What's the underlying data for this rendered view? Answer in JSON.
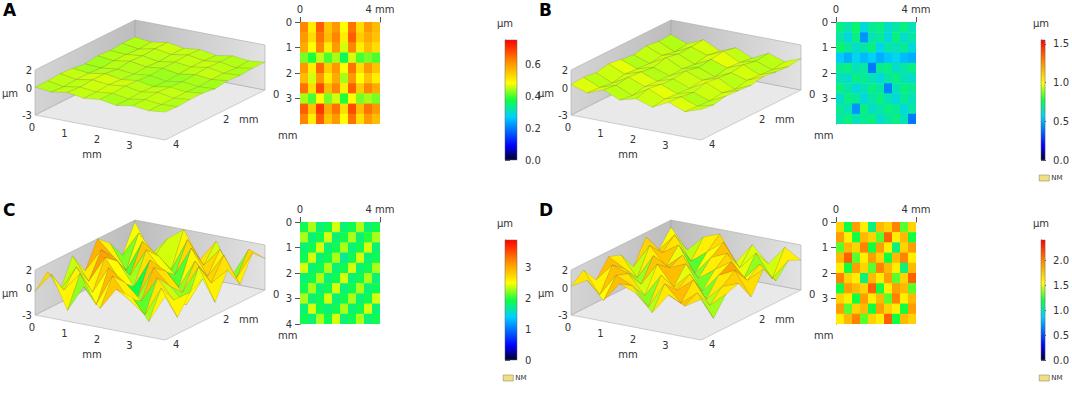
{
  "chart_data": [
    {
      "type": "surface_map",
      "label": "A",
      "surface": {
        "x_label": "mm",
        "y_label": "mm",
        "z_label": "µm",
        "xlim": [
          0,
          4
        ],
        "ylim": [
          0,
          4
        ],
        "zlim": [
          -3,
          2
        ],
        "xticks": [
          0,
          1,
          2,
          3
        ],
        "yticks": [
          0,
          2,
          4
        ],
        "zticks": [
          -3,
          0,
          2
        ],
        "z": [
          [
            0.1,
            -0.1,
            0.2,
            -0.1,
            0.1,
            -0.2,
            0.1,
            -0.1,
            0.1
          ],
          [
            0.1,
            -0.2,
            0.2,
            -0.1,
            0.2,
            -0.1,
            0.1,
            -0.2,
            0.1
          ],
          [
            0.0,
            -0.1,
            0.1,
            -0.2,
            0.1,
            -0.1,
            0.2,
            -0.1,
            0.0
          ],
          [
            0.1,
            -0.1,
            0.2,
            -0.1,
            0.1,
            -0.2,
            0.1,
            -0.1,
            0.1
          ],
          [
            -0.1,
            -0.2,
            0.0,
            -0.2,
            0.0,
            -0.3,
            0.0,
            -0.2,
            -0.1
          ],
          [
            0.1,
            -0.1,
            0.2,
            -0.1,
            0.1,
            -0.2,
            0.1,
            -0.1,
            0.1
          ],
          [
            0.2,
            -0.1,
            0.2,
            0.0,
            0.2,
            -0.1,
            0.2,
            -0.1,
            0.1
          ],
          [
            0.1,
            -0.2,
            0.1,
            -0.1,
            0.1,
            -0.2,
            0.1,
            -0.1,
            0.0
          ],
          [
            0.1,
            -0.1,
            0.2,
            -0.1,
            0.1,
            -0.2,
            0.1,
            -0.1,
            0.1
          ]
        ]
      },
      "heatmap": {
        "y_label": "mm",
        "xlim": [
          0,
          4
        ],
        "ylim": [
          0,
          4
        ],
        "xticks": [
          0,
          {
            "value": 4,
            "label": "4 mm"
          }
        ],
        "yticks": [
          0,
          1,
          2,
          3
        ],
        "cells": [
          [
            0.62,
            0.5,
            0.66,
            0.55,
            0.6,
            0.48,
            0.64,
            0.52,
            0.6,
            0.56
          ],
          [
            0.6,
            0.52,
            0.64,
            0.56,
            0.62,
            0.5,
            0.66,
            0.54,
            0.58,
            0.55
          ],
          [
            0.58,
            0.48,
            0.62,
            0.5,
            0.6,
            0.46,
            0.62,
            0.5,
            0.56,
            0.52
          ],
          [
            0.42,
            0.38,
            0.45,
            0.4,
            0.44,
            0.36,
            0.46,
            0.4,
            0.42,
            0.4
          ],
          [
            0.6,
            0.5,
            0.65,
            0.54,
            0.6,
            0.48,
            0.64,
            0.52,
            0.6,
            0.55
          ],
          [
            0.56,
            0.46,
            0.6,
            0.5,
            0.58,
            0.44,
            0.6,
            0.48,
            0.55,
            0.5
          ],
          [
            0.64,
            0.52,
            0.68,
            0.56,
            0.62,
            0.5,
            0.66,
            0.54,
            0.62,
            0.58
          ],
          [
            0.44,
            0.4,
            0.48,
            0.42,
            0.46,
            0.38,
            0.48,
            0.42,
            0.44,
            0.42
          ],
          [
            0.66,
            0.55,
            0.7,
            0.58,
            0.64,
            0.52,
            0.68,
            0.56,
            0.64,
            0.6
          ],
          [
            0.62,
            0.5,
            0.66,
            0.55,
            0.6,
            0.48,
            0.64,
            0.52,
            0.6,
            0.56
          ]
        ]
      },
      "colorbar": {
        "label": "µm",
        "range": [
          0,
          0.75
        ],
        "ticks": [
          {
            "value": 0,
            "label": "0.0"
          },
          {
            "value": 0.2,
            "label": "0.2"
          },
          {
            "value": 0.4,
            "label": "0.4"
          },
          {
            "value": 0.6,
            "label": "0.6"
          }
        ]
      }
    },
    {
      "type": "surface_map",
      "label": "B",
      "surface": {
        "x_label": "mm",
        "y_label": "mm",
        "z_label": "µm",
        "xlim": [
          0,
          4
        ],
        "ylim": [
          0,
          4
        ],
        "zlim": [
          -3,
          2
        ],
        "xticks": [
          0,
          1,
          2,
          3
        ],
        "yticks": [
          0,
          2,
          4
        ],
        "zticks": [
          -3,
          0,
          2
        ],
        "z": [
          [
            0.4,
            -0.3,
            0.5,
            -0.4,
            0.3,
            -0.5,
            0.4,
            -0.2,
            0.5
          ],
          [
            0.3,
            -0.5,
            0.4,
            -0.2,
            0.6,
            -0.3,
            0.2,
            -0.4,
            0.3
          ],
          [
            0.5,
            -0.2,
            0.3,
            -0.5,
            0.4,
            -0.2,
            0.5,
            -0.3,
            0.4
          ],
          [
            0.2,
            -0.4,
            0.6,
            -0.3,
            0.2,
            -0.5,
            0.3,
            -0.2,
            0.6
          ],
          [
            0.4,
            -0.3,
            0.2,
            -0.4,
            0.5,
            -0.2,
            0.4,
            -0.5,
            0.3
          ],
          [
            0.6,
            -0.2,
            0.4,
            -0.3,
            0.3,
            -0.4,
            0.6,
            -0.2,
            0.4
          ],
          [
            0.3,
            -0.5,
            0.5,
            -0.2,
            0.4,
            -0.3,
            0.2,
            -0.4,
            0.5
          ],
          [
            0.5,
            -0.3,
            0.3,
            -0.5,
            0.6,
            -0.2,
            0.4,
            -0.3,
            0.2
          ],
          [
            0.4,
            -0.2,
            0.5,
            -0.3,
            0.2,
            -0.4,
            0.5,
            -0.2,
            0.4
          ]
        ]
      },
      "heatmap": {
        "y_label": "mm",
        "xlim": [
          0,
          4
        ],
        "ylim": [
          0,
          4
        ],
        "xticks": [
          0,
          {
            "value": 4,
            "label": "4 mm"
          }
        ],
        "yticks": [
          0,
          1,
          2,
          3
        ],
        "cells": [
          [
            0.7,
            0.65,
            0.72,
            0.6,
            0.68,
            0.7,
            0.62,
            0.66,
            0.7,
            0.64
          ],
          [
            0.66,
            0.6,
            0.7,
            0.45,
            0.64,
            0.68,
            0.6,
            0.7,
            0.62,
            0.66
          ],
          [
            0.72,
            0.68,
            0.62,
            0.66,
            0.7,
            0.58,
            0.66,
            0.64,
            0.68,
            0.6
          ],
          [
            0.55,
            0.5,
            0.58,
            0.52,
            0.56,
            0.5,
            0.54,
            0.58,
            0.52,
            0.5
          ],
          [
            0.68,
            0.7,
            0.64,
            0.66,
            0.4,
            0.68,
            0.7,
            0.62,
            0.66,
            0.7
          ],
          [
            0.64,
            0.62,
            0.7,
            0.68,
            0.64,
            0.6,
            0.66,
            0.7,
            0.64,
            0.62
          ],
          [
            0.7,
            0.66,
            0.6,
            0.64,
            0.7,
            0.66,
            0.42,
            0.64,
            0.7,
            0.68
          ],
          [
            0.62,
            0.7,
            0.68,
            0.6,
            0.66,
            0.7,
            0.64,
            0.6,
            0.68,
            0.64
          ],
          [
            0.68,
            0.64,
            0.45,
            0.7,
            0.62,
            0.66,
            0.7,
            0.68,
            0.6,
            0.66
          ],
          [
            0.66,
            0.7,
            0.64,
            0.68,
            0.7,
            0.62,
            0.66,
            0.7,
            0.64,
            0.4
          ]
        ]
      },
      "colorbar": {
        "label": "µm",
        "range": [
          0,
          1.55
        ],
        "missing_label": "NM",
        "ticks": [
          {
            "value": 0,
            "label": "0.0"
          },
          {
            "value": 0.5,
            "label": "0.5"
          },
          {
            "value": 1,
            "label": "1.0"
          },
          {
            "value": 1.5,
            "label": "1.5"
          }
        ]
      }
    },
    {
      "type": "surface_map",
      "label": "C",
      "surface": {
        "x_label": "mm",
        "y_label": "mm",
        "z_label": "µm",
        "xlim": [
          0,
          4
        ],
        "ylim": [
          0,
          4
        ],
        "zlim": [
          -3,
          2
        ],
        "xticks": [
          0,
          1,
          2,
          3
        ],
        "yticks": [
          0,
          2,
          4
        ],
        "zticks": [
          -3,
          0,
          2
        ],
        "z": [
          [
            1.8,
            -1.5,
            0.6,
            2.0,
            -1.0,
            1.4,
            -2.0,
            1.2,
            0.5
          ],
          [
            -1.2,
            1.6,
            -0.5,
            -1.8,
            1.9,
            -0.6,
            1.5,
            -1.4,
            1.8
          ],
          [
            0.8,
            -1.9,
            1.7,
            0.4,
            -1.3,
            2.0,
            -0.8,
            1.9,
            -1.0
          ],
          [
            2.0,
            0.3,
            -1.4,
            1.8,
            -0.2,
            -1.7,
            1.6,
            -0.5,
            1.3
          ],
          [
            -0.9,
            1.8,
            0.9,
            -1.6,
            1.7,
            0.8,
            -1.2,
            2.0,
            -1.6
          ],
          [
            1.5,
            -1.0,
            2.0,
            -0.4,
            -1.8,
            1.9,
            0.2,
            -1.5,
            1.7
          ],
          [
            -1.7,
            1.3,
            -1.2,
            1.9,
            0.6,
            -1.1,
            1.8,
            -0.3,
            0.9
          ],
          [
            1.1,
            -0.6,
            1.6,
            -1.5,
            2.0,
            -0.2,
            -1.6,
            1.7,
            -1.2
          ],
          [
            -0.4,
            1.9,
            -1.8,
            1.2,
            -0.9,
            1.6,
            1.0,
            -1.3,
            1.8
          ]
        ]
      },
      "heatmap": {
        "y_label": "mm",
        "xlim": [
          0,
          4
        ],
        "ylim": [
          0,
          4
        ],
        "xticks": [
          0,
          {
            "value": 4,
            "label": "4 mm"
          }
        ],
        "yticks": [
          0,
          1,
          2,
          3,
          4
        ],
        "cells": [
          [
            1.9,
            2.3,
            1.8,
            1.9,
            2.4,
            1.8,
            1.9,
            2.3,
            1.8,
            1.9
          ],
          [
            2.3,
            1.8,
            1.9,
            2.4,
            1.8,
            1.9,
            2.3,
            1.8,
            2.0,
            2.3
          ],
          [
            1.8,
            1.9,
            2.4,
            1.8,
            1.9,
            2.3,
            1.8,
            1.9,
            2.4,
            1.8
          ],
          [
            1.9,
            2.4,
            1.8,
            1.9,
            2.3,
            1.7,
            1.9,
            2.4,
            1.8,
            1.9
          ],
          [
            2.4,
            1.8,
            1.9,
            2.3,
            1.8,
            1.9,
            2.4,
            1.8,
            1.9,
            2.3
          ],
          [
            1.8,
            1.9,
            2.3,
            1.8,
            1.9,
            2.4,
            1.8,
            1.9,
            2.3,
            1.8
          ],
          [
            1.9,
            2.3,
            1.8,
            1.9,
            2.4,
            1.8,
            1.9,
            2.3,
            1.8,
            1.9
          ],
          [
            2.3,
            1.8,
            1.9,
            2.4,
            1.8,
            1.9,
            2.3,
            1.8,
            1.9,
            2.4
          ],
          [
            1.8,
            2.4,
            1.9,
            1.8,
            1.9,
            2.3,
            1.8,
            1.9,
            2.4,
            1.8
          ],
          [
            1.9,
            1.8,
            2.3,
            1.9,
            2.4,
            1.8,
            1.9,
            2.3,
            1.8,
            1.9
          ]
        ]
      },
      "colorbar": {
        "label": "µm",
        "range": [
          0,
          3.9
        ],
        "missing_label": "NM",
        "ticks": [
          0,
          1,
          2,
          3
        ]
      }
    },
    {
      "type": "surface_map",
      "label": "D",
      "surface": {
        "x_label": "mm",
        "y_label": "mm",
        "z_label": "µm",
        "xlim": [
          0,
          4
        ],
        "ylim": [
          0,
          4
        ],
        "zlim": [
          -3,
          2
        ],
        "xticks": [
          0,
          1,
          2,
          3
        ],
        "yticks": [
          0,
          2,
          4
        ],
        "zticks": [
          -3,
          0,
          2
        ],
        "z": [
          [
            1.2,
            -1.0,
            0.8,
            1.5,
            -1.3,
            1.0,
            -0.8,
            1.4,
            0.3
          ],
          [
            -0.7,
            1.4,
            -1.2,
            0.2,
            1.6,
            -0.9,
            1.1,
            -1.4,
            1.0
          ],
          [
            1.5,
            0.1,
            1.3,
            -1.5,
            0.6,
            1.4,
            -1.1,
            0.9,
            -0.6
          ],
          [
            -1.1,
            1.6,
            -0.4,
            1.2,
            -1.0,
            0.3,
            1.5,
            -0.2,
            1.4
          ],
          [
            0.9,
            -1.3,
            1.5,
            0.5,
            1.3,
            -1.4,
            0.7,
            1.6,
            -1.0
          ],
          [
            1.4,
            0.4,
            -1.0,
            1.6,
            -0.6,
            1.2,
            -1.3,
            0.5,
            1.2
          ],
          [
            -0.5,
            1.5,
            0.9,
            -1.2,
            1.4,
            0.1,
            1.6,
            -0.9,
            0.7
          ],
          [
            1.3,
            -1.1,
            1.4,
            0.6,
            -1.4,
            1.5,
            -0.3,
            1.2,
            -1.3
          ],
          [
            0.2,
            1.2,
            -0.7,
            1.5,
            0.8,
            -1.0,
            1.3,
            0.4,
            1.5
          ]
        ]
      },
      "heatmap": {
        "y_label": "mm",
        "xlim": [
          0,
          4
        ],
        "ylim": [
          0,
          4
        ],
        "xticks": [
          0,
          {
            "value": 4,
            "label": "4 mm"
          }
        ],
        "yticks": [
          0,
          1,
          2,
          3
        ],
        "cells": [
          [
            1.7,
            1.2,
            1.9,
            1.6,
            1.1,
            1.8,
            1.7,
            2.0,
            1.3,
            1.7
          ],
          [
            1.9,
            1.6,
            1.2,
            1.8,
            1.7,
            1.3,
            2.1,
            1.6,
            1.8,
            1.2
          ],
          [
            1.3,
            1.8,
            1.7,
            2.0,
            1.2,
            1.9,
            1.6,
            1.1,
            1.7,
            1.9
          ],
          [
            1.8,
            2.1,
            1.3,
            1.6,
            1.9,
            1.7,
            1.2,
            1.8,
            2.0,
            1.6
          ],
          [
            1.6,
            1.2,
            1.9,
            1.7,
            1.3,
            2.0,
            1.8,
            1.6,
            1.1,
            1.8
          ],
          [
            2.0,
            1.7,
            1.6,
            1.1,
            1.8,
            1.6,
            1.9,
            1.3,
            1.7,
            2.1
          ],
          [
            1.2,
            1.9,
            1.8,
            1.7,
            2.1,
            1.2,
            1.6,
            1.9,
            1.8,
            1.3
          ],
          [
            1.7,
            1.6,
            1.2,
            1.9,
            1.6,
            1.8,
            1.3,
            2.0,
            1.6,
            1.8
          ],
          [
            1.9,
            1.3,
            1.7,
            1.8,
            1.2,
            1.9,
            1.7,
            1.6,
            1.2,
            1.9
          ],
          [
            1.6,
            1.8,
            2.0,
            1.3,
            1.7,
            1.6,
            2.1,
            1.2,
            1.8,
            1.7
          ]
        ]
      },
      "colorbar": {
        "label": "µm",
        "range": [
          0,
          2.4
        ],
        "missing_label": "NM",
        "ticks": [
          {
            "value": 0,
            "label": "0.0"
          },
          {
            "value": 0.5,
            "label": "0.5"
          },
          {
            "value": 1,
            "label": "1.0"
          },
          {
            "value": 1.5,
            "label": "1.5"
          },
          {
            "value": 2,
            "label": "2.0"
          }
        ]
      }
    }
  ]
}
